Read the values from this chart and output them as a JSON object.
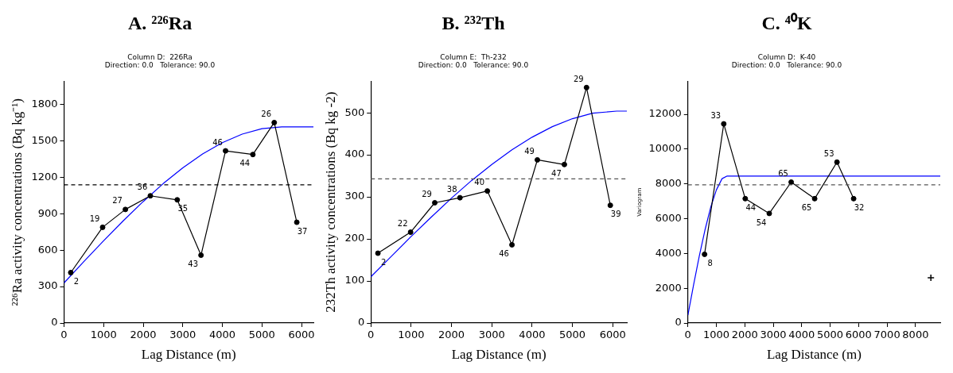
{
  "chart_data": [
    {
      "type": "line",
      "title": "A. ²²⁶Ra",
      "subtitle": "Column D:  226Ra\nDirection: 0.0   Tolerance: 90.0",
      "xlabel": "Lag Distance (m)",
      "ylabel": "²²⁶Ra activity concentrations (Bq kg⁻¹)",
      "xlim": [
        0,
        6300
      ],
      "xticks": [
        0,
        1000,
        2000,
        3000,
        4000,
        5000,
        6000
      ],
      "ylim": [
        0,
        1990
      ],
      "yticks": [
        0,
        300,
        600,
        900,
        1200,
        1500,
        1800
      ],
      "grid": false,
      "series": [
        {
          "type": "line",
          "color": "#000000",
          "marker": "circle",
          "x": [
            170,
            975,
            1550,
            2180,
            2860,
            3460,
            4080,
            4770,
            5310,
            5880
          ],
          "values": [
            415,
            788,
            935,
            1047,
            1014,
            558,
            1417,
            1387,
            1650,
            829
          ]
        },
        {
          "type": "line",
          "color": "#0000ff",
          "marker": "none",
          "x": [
            0,
            500,
            1000,
            1500,
            2000,
            2500,
            3000,
            3500,
            4000,
            4500,
            5000,
            5500,
            6300
          ],
          "values": [
            330,
            505,
            677,
            843,
            1000,
            1146,
            1277,
            1391,
            1485,
            1555,
            1600,
            1615,
            1615
          ]
        }
      ],
      "annotations": [
        {
          "text": "2",
          "x": 170,
          "y": 415
        },
        {
          "text": "19",
          "x": 975,
          "y": 788
        },
        {
          "text": "27",
          "x": 1550,
          "y": 935
        },
        {
          "text": "36",
          "x": 2180,
          "y": 1047
        },
        {
          "text": "35",
          "x": 2860,
          "y": 1014
        },
        {
          "text": "43",
          "x": 3460,
          "y": 558
        },
        {
          "text": "46",
          "x": 4080,
          "y": 1417
        },
        {
          "text": "44",
          "x": 4770,
          "y": 1387
        },
        {
          "text": "26",
          "x": 5310,
          "y": 1650
        },
        {
          "text": "37",
          "x": 5880,
          "y": 829
        }
      ],
      "ref_lines": [
        {
          "axis": "y",
          "value": 1138,
          "color": "#000000",
          "line_style": "dashed"
        }
      ]
    },
    {
      "type": "line",
      "title": "B. ²³²Th",
      "subtitle": "Column E:  Th-232\nDirection: 0.0   Tolerance: 90.0",
      "xlabel": "Lag Distance (m)",
      "ylabel": "232Th activity concentrations (Bq kg -2)",
      "xlim": [
        0,
        6350
      ],
      "xticks": [
        0,
        1000,
        2000,
        3000,
        4000,
        5000,
        6000
      ],
      "ylim": [
        0,
        575
      ],
      "yticks": [
        0,
        100,
        200,
        300,
        400,
        500
      ],
      "grid": false,
      "series": [
        {
          "type": "line",
          "color": "#000000",
          "marker": "circle",
          "x": [
            175,
            985,
            1585,
            2210,
            2890,
            3500,
            4130,
            4800,
            5350,
            5940
          ],
          "values": [
            166,
            216,
            286,
            298,
            314,
            186,
            388,
            377,
            560,
            280
          ]
        },
        {
          "type": "line",
          "color": "#0000ff",
          "marker": "none",
          "x": [
            0,
            500,
            1000,
            1500,
            2000,
            2500,
            3000,
            3500,
            4000,
            4500,
            5000,
            5500,
            6100,
            6350
          ],
          "values": [
            110,
            158,
            206,
            252,
            297,
            339,
            377,
            412,
            442,
            467,
            486,
            499,
            504,
            504
          ]
        }
      ],
      "annotations": [
        {
          "text": "2",
          "x": 175,
          "y": 166
        },
        {
          "text": "22",
          "x": 985,
          "y": 216
        },
        {
          "text": "29",
          "x": 1585,
          "y": 286
        },
        {
          "text": "38",
          "x": 2210,
          "y": 298
        },
        {
          "text": "40",
          "x": 2890,
          "y": 314
        },
        {
          "text": "46",
          "x": 3500,
          "y": 186
        },
        {
          "text": "49",
          "x": 4130,
          "y": 388
        },
        {
          "text": "47",
          "x": 4800,
          "y": 377
        },
        {
          "text": "29",
          "x": 5350,
          "y": 560
        },
        {
          "text": "39",
          "x": 5940,
          "y": 280
        }
      ],
      "ref_lines": [
        {
          "axis": "y",
          "value": 343,
          "color": "#555555",
          "line_style": "dashed"
        }
      ]
    },
    {
      "type": "line",
      "title": "C. ⁴⁰K",
      "subtitle": "Column D:  K-40\nDirection: 0.0   Tolerance: 90.0",
      "xlabel": "Lag Distance (m)",
      "ylabel": "Variogram",
      "xlim": [
        0,
        8870
      ],
      "xticks": [
        0,
        1000,
        2000,
        3000,
        4000,
        5000,
        6000,
        7000,
        8000
      ],
      "ylim": [
        0,
        13900
      ],
      "yticks": [
        0,
        2000,
        4000,
        6000,
        8000,
        10000,
        12000
      ],
      "grid": false,
      "series": [
        {
          "type": "line",
          "color": "#000000",
          "marker": "circle",
          "x": [
            585,
            1260,
            2015,
            2860,
            3630,
            4455,
            5240,
            5825
          ],
          "values": [
            3950,
            11450,
            7150,
            6300,
            8100,
            7150,
            9250,
            7150
          ]
        },
        {
          "type": "line",
          "color": "#0000ff",
          "marker": "none",
          "x": [
            0,
            200,
            400,
            600,
            800,
            1000,
            1200,
            1380,
            8870
          ],
          "values": [
            450,
            2200,
            3850,
            5350,
            6650,
            7650,
            8300,
            8450,
            8450
          ]
        },
        {
          "type": "scatter",
          "color": "#000000",
          "marker": "cross",
          "x": [
            8540
          ],
          "values": [
            2600
          ]
        }
      ],
      "annotations": [
        {
          "text": "8",
          "x": 585,
          "y": 3950
        },
        {
          "text": "33",
          "x": 1260,
          "y": 11450
        },
        {
          "text": "44",
          "x": 2015,
          "y": 7150
        },
        {
          "text": "54",
          "x": 2860,
          "y": 6300
        },
        {
          "text": "65",
          "x": 3630,
          "y": 8100
        },
        {
          "text": "65",
          "x": 4455,
          "y": 7150
        },
        {
          "text": "53",
          "x": 5240,
          "y": 9250
        },
        {
          "text": "32",
          "x": 5825,
          "y": 7150
        }
      ],
      "ref_lines": [
        {
          "axis": "y",
          "value": 7950,
          "color": "#555555",
          "line_style": "dashed"
        }
      ]
    }
  ]
}
